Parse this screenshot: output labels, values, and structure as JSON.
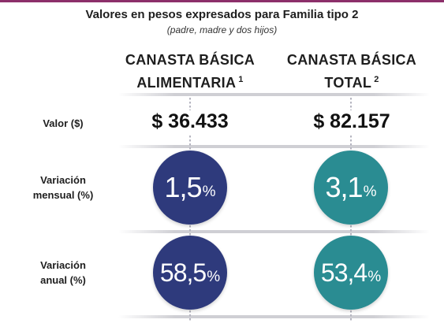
{
  "header": {
    "title": "Valores en pesos expresados para Familia tipo 2",
    "subtitle": "(padre, madre y dos hijos)"
  },
  "columns": [
    {
      "line1": "CANASTA BÁSICA",
      "line2": "ALIMENTARIA",
      "note": "1"
    },
    {
      "line1": "CANASTA BÁSICA",
      "line2": "TOTAL",
      "note": "2"
    }
  ],
  "rows": {
    "valor": {
      "label": "Valor ($)",
      "values": [
        "$ 36.433",
        "$ 82.157"
      ]
    },
    "mensual": {
      "label_line1": "Variación",
      "label_line2": "mensual (%)",
      "values": [
        "1,5",
        "3,1"
      ],
      "unit": "%"
    },
    "anual": {
      "label_line1": "Variación",
      "label_line2": "anual (%)",
      "values": [
        "58,5",
        "53,4"
      ],
      "unit": "%"
    }
  },
  "colors": {
    "alimentaria_circle": "#2e3a7c",
    "total_circle": "#2a8c92",
    "top_bar": "#8c2f6a"
  }
}
